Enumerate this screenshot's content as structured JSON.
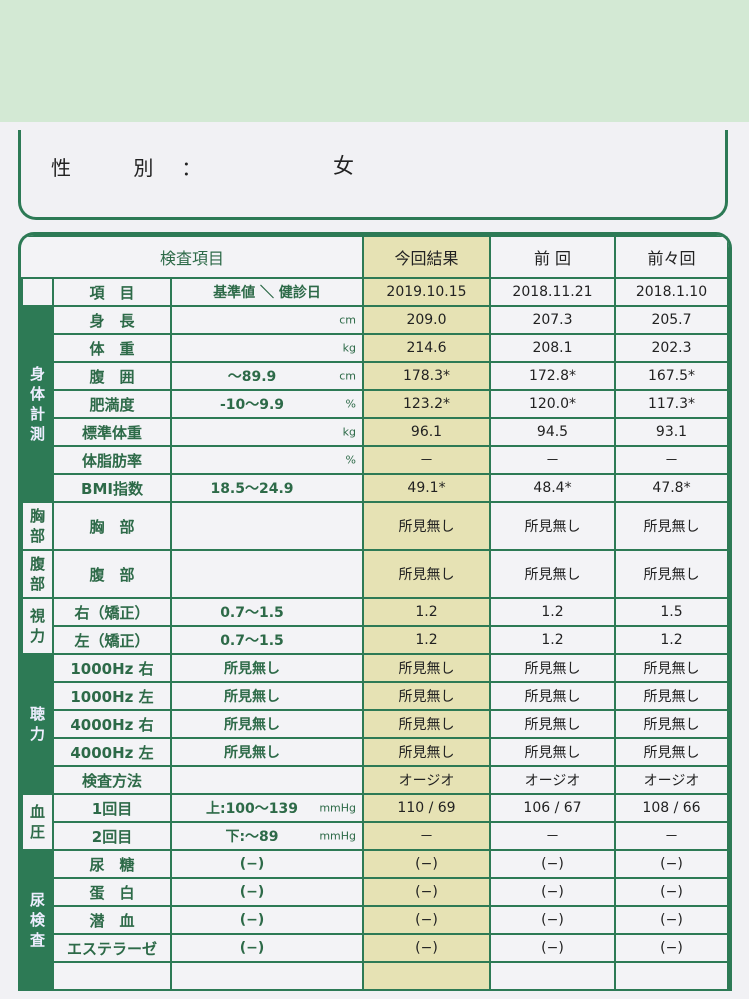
{
  "gender": {
    "label": "性 別：",
    "value": "女"
  },
  "header": {
    "item_group": "検査項目",
    "current": "今回結果",
    "prev": "前 回",
    "prev2": "前々回"
  },
  "subheader": {
    "item": "項　目",
    "ref": "基準値 ＼ 健診日",
    "dates": [
      "2019.10.15",
      "2018.11.21",
      "2018.1.10"
    ]
  },
  "groups": [
    {
      "label": "身体計測",
      "dark": true,
      "rows": [
        [
          "身　長",
          "",
          "cm",
          "209.0",
          "207.3",
          "205.7"
        ],
        [
          "体　重",
          "",
          "kg",
          "214.6",
          "208.1",
          "202.3"
        ],
        [
          "腹　囲",
          "～89.9",
          "cm",
          "178.3*",
          "172.8*",
          "167.5*"
        ],
        [
          "肥満度",
          "-10～9.9",
          "%",
          "123.2*",
          "120.0*",
          "117.3*"
        ],
        [
          "標準体重",
          "",
          "kg",
          "96.1",
          "94.5",
          "93.1"
        ],
        [
          "体脂肪率",
          "",
          "%",
          "－",
          "－",
          "－"
        ],
        [
          "BMI指数",
          "18.5～24.9",
          "",
          "49.1*",
          "48.4*",
          "47.8*"
        ]
      ]
    },
    {
      "label": "胸部",
      "dark": false,
      "tall": true,
      "rows": [
        [
          "胸　部",
          "",
          "",
          "所見無し",
          "所見無し",
          "所見無し"
        ]
      ]
    },
    {
      "label": "腹部",
      "dark": false,
      "tall": true,
      "rows": [
        [
          "腹　部",
          "",
          "",
          "所見無し",
          "所見無し",
          "所見無し"
        ]
      ]
    },
    {
      "label": "視力",
      "dark": false,
      "rows": [
        [
          "右（矯正）",
          "0.7～1.5",
          "",
          "1.2",
          "1.2",
          "1.5"
        ],
        [
          "左（矯正）",
          "0.7～1.5",
          "",
          "1.2",
          "1.2",
          "1.2"
        ]
      ]
    },
    {
      "label": "聴力",
      "dark": true,
      "rows": [
        [
          "1000Hz 右",
          "所見無し",
          "",
          "所見無し",
          "所見無し",
          "所見無し"
        ],
        [
          "1000Hz 左",
          "所見無し",
          "",
          "所見無し",
          "所見無し",
          "所見無し"
        ],
        [
          "4000Hz 右",
          "所見無し",
          "",
          "所見無し",
          "所見無し",
          "所見無し"
        ],
        [
          "4000Hz 左",
          "所見無し",
          "",
          "所見無し",
          "所見無し",
          "所見無し"
        ],
        [
          "検査方法",
          "",
          "",
          "オージオ",
          "オージオ",
          "オージオ"
        ]
      ]
    },
    {
      "label": "血圧",
      "dark": false,
      "rows": [
        [
          "1回目",
          "上:100～139",
          "mmHg",
          "110 / 69",
          "106 / 67",
          "108 / 66"
        ],
        [
          "2回目",
          "下:～89",
          "mmHg",
          "－",
          "－",
          "－"
        ]
      ]
    },
    {
      "label": "尿検査",
      "dark": true,
      "rows": [
        [
          "尿　糖",
          "(−)",
          "",
          "(−)",
          "(−)",
          "(−)"
        ],
        [
          "蛋　白",
          "(−)",
          "",
          "(−)",
          "(−)",
          "(−)"
        ],
        [
          "潜　血",
          "(−)",
          "",
          "(−)",
          "(−)",
          "(−)"
        ],
        [
          "エステラーゼ",
          "(−)",
          "",
          "(−)",
          "(−)",
          "(−)"
        ],
        [
          "",
          "",
          "",
          "",
          "",
          ""
        ]
      ]
    }
  ]
}
